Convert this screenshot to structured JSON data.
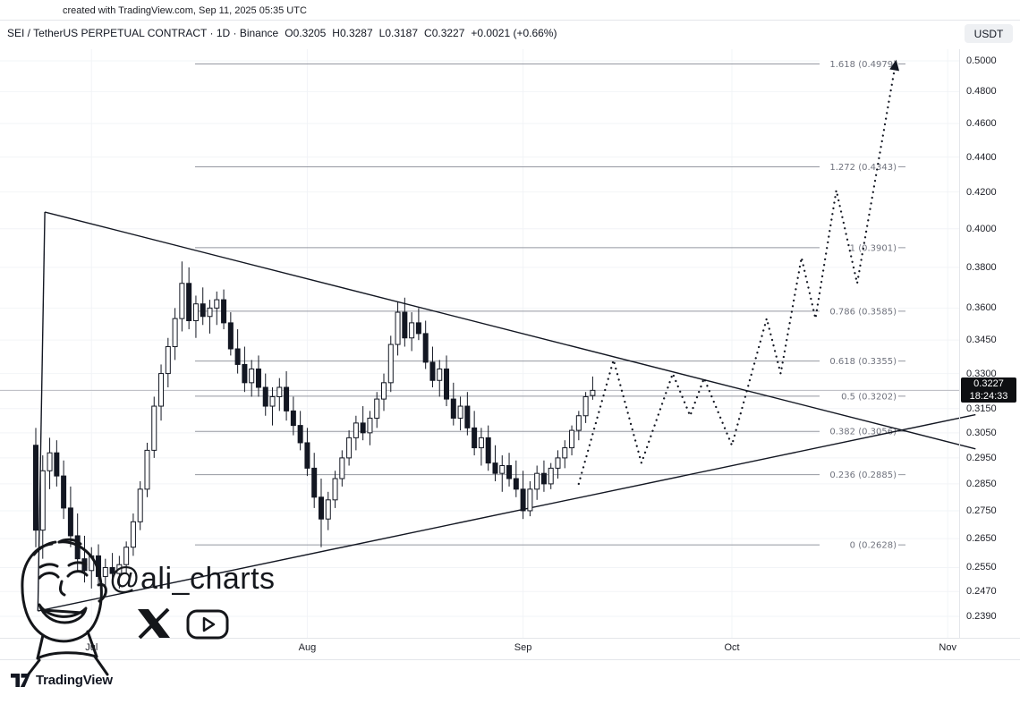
{
  "meta": {
    "created_note": "created with TradingView.com, Sep 11, 2025 05:35 UTC"
  },
  "header": {
    "symbol_line": "SEI / TetherUS PERPETUAL CONTRACT · 1D · Binance",
    "ohlc": {
      "open_label": "O",
      "open": "0.3205",
      "high_label": "H",
      "high": "0.3287",
      "low_label": "L",
      "low": "0.3187",
      "close_label": "C",
      "close": "0.3227",
      "change": "+0.0021 (+0.66%)"
    },
    "currency_button": "USDT"
  },
  "watermark": {
    "handle": "@ali_charts"
  },
  "footer": {
    "brand": "TradingView"
  },
  "price_scale": {
    "ticks": [
      "0.5000",
      "0.4800",
      "0.4600",
      "0.4400",
      "0.4200",
      "0.4000",
      "0.3800",
      "0.3600",
      "0.3450",
      "0.3300",
      "0.3150",
      "0.3050",
      "0.2950",
      "0.2850",
      "0.2750",
      "0.2650",
      "0.2550",
      "0.2470",
      "0.2390"
    ],
    "badge": {
      "price": "0.3227",
      "countdown": "18:24:33"
    }
  },
  "colors": {
    "background": "#ffffff",
    "candle_up": "#ffffff",
    "candle_down": "#131722",
    "outline": "#131722",
    "fib_line": "#9598a1",
    "grid": "#f2f4f7",
    "price_line": "#b8bac1",
    "badge_bg": "#0e0f12",
    "badge_text": "#ffffff",
    "muted_text": "#70737e"
  },
  "chart_data": {
    "type": "candlestick",
    "title": "SEI / TetherUS PERPETUAL CONTRACT · 1D · Binance",
    "symbol": "SEI / TetherUS PERPETUAL CONTRACT",
    "exchange": "Binance",
    "interval": "1D",
    "price_scale_type": "log",
    "visible_price_range": [
      0.235,
      0.508
    ],
    "x_axis_months": "Jul–Nov 2025",
    "last": {
      "open": 0.3205,
      "high": 0.3287,
      "low": 0.3187,
      "close": 0.3227,
      "change": "+0.0021",
      "change_pct": "+0.66%"
    },
    "fib_levels": [
      {
        "level": "1.618",
        "price": "0.4979"
      },
      {
        "level": "1.272",
        "price": "0.4343"
      },
      {
        "level": "1",
        "price": "0.3901"
      },
      {
        "level": "0.786",
        "price": "0.3585"
      },
      {
        "level": "0.618",
        "price": "0.3355"
      },
      {
        "level": "0.5",
        "price": "0.3202"
      },
      {
        "level": "0.382",
        "price": "0.3056"
      },
      {
        "level": "0.236",
        "price": "0.2885"
      },
      {
        "level": "0",
        "price": "0.2628"
      }
    ],
    "months": [
      {
        "label": "Jul",
        "day_index": 8
      },
      {
        "label": "Aug",
        "day_index": 39
      },
      {
        "label": "Sep",
        "day_index": 70
      },
      {
        "label": "Oct",
        "day_index": 100
      },
      {
        "label": "Nov",
        "day_index": 131
      }
    ],
    "trendline_triangle": {
      "pattern": "symmetrical-triangle",
      "vertices_day_price": [
        [
          1.3,
          0.409
        ],
        [
          0.3,
          0.2407
        ],
        [
          124.4,
          0.3061
        ]
      ],
      "extend_to_day": 135
    },
    "projection_path_day_price": [
      [
        78,
        0.285
      ],
      [
        83,
        0.336
      ],
      [
        87,
        0.293
      ],
      [
        91.5,
        0.33
      ],
      [
        94,
        0.312
      ],
      [
        96,
        0.328
      ],
      [
        100,
        0.3
      ],
      [
        105,
        0.355
      ],
      [
        107,
        0.33
      ],
      [
        110,
        0.385
      ],
      [
        112,
        0.355
      ],
      [
        115,
        0.421
      ],
      [
        118,
        0.372
      ],
      [
        123.5,
        0.4979
      ]
    ],
    "candles": [
      [
        "6/23",
        0.3,
        0.307,
        0.262,
        0.268
      ],
      [
        "6/24",
        0.268,
        0.296,
        0.258,
        0.29
      ],
      [
        "6/25",
        0.29,
        0.303,
        0.283,
        0.297
      ],
      [
        "6/26",
        0.297,
        0.302,
        0.284,
        0.288
      ],
      [
        "6/27",
        0.288,
        0.294,
        0.272,
        0.276
      ],
      [
        "6/28",
        0.276,
        0.284,
        0.262,
        0.266
      ],
      [
        "6/29",
        0.266,
        0.274,
        0.254,
        0.258
      ],
      [
        "6/30",
        0.258,
        0.266,
        0.25,
        0.254
      ],
      [
        "7/1",
        0.254,
        0.262,
        0.248,
        0.259
      ],
      [
        "7/2",
        0.259,
        0.263,
        0.249,
        0.252
      ],
      [
        "7/3",
        0.252,
        0.258,
        0.247,
        0.255
      ],
      [
        "7/4",
        0.255,
        0.26,
        0.25,
        0.253
      ],
      [
        "7/5",
        0.253,
        0.259,
        0.248,
        0.256
      ],
      [
        "7/6",
        0.256,
        0.264,
        0.253,
        0.262
      ],
      [
        "7/7",
        0.262,
        0.274,
        0.259,
        0.271
      ],
      [
        "7/8",
        0.271,
        0.286,
        0.268,
        0.283
      ],
      [
        "7/9",
        0.283,
        0.301,
        0.28,
        0.298
      ],
      [
        "7/10",
        0.298,
        0.32,
        0.295,
        0.316
      ],
      [
        "7/11",
        0.316,
        0.334,
        0.31,
        0.33
      ],
      [
        "7/12",
        0.33,
        0.346,
        0.324,
        0.342
      ],
      [
        "7/13",
        0.342,
        0.36,
        0.336,
        0.355
      ],
      [
        "7/14",
        0.355,
        0.383,
        0.349,
        0.372
      ],
      [
        "7/15",
        0.372,
        0.38,
        0.35,
        0.354
      ],
      [
        "7/16",
        0.354,
        0.366,
        0.346,
        0.362
      ],
      [
        "7/17",
        0.362,
        0.37,
        0.352,
        0.356
      ],
      [
        "7/18",
        0.356,
        0.364,
        0.348,
        0.36
      ],
      [
        "7/19",
        0.36,
        0.368,
        0.352,
        0.364
      ],
      [
        "7/20",
        0.364,
        0.369,
        0.35,
        0.353
      ],
      [
        "7/21",
        0.353,
        0.358,
        0.338,
        0.341
      ],
      [
        "7/22",
        0.341,
        0.35,
        0.33,
        0.334
      ],
      [
        "7/23",
        0.334,
        0.342,
        0.322,
        0.326
      ],
      [
        "7/24",
        0.326,
        0.336,
        0.32,
        0.332
      ],
      [
        "7/25",
        0.332,
        0.338,
        0.32,
        0.324
      ],
      [
        "7/26",
        0.324,
        0.33,
        0.312,
        0.316
      ],
      [
        "7/27",
        0.316,
        0.324,
        0.308,
        0.32
      ],
      [
        "7/28",
        0.32,
        0.328,
        0.314,
        0.324
      ],
      [
        "7/29",
        0.324,
        0.331,
        0.31,
        0.314
      ],
      [
        "7/30",
        0.314,
        0.32,
        0.304,
        0.308
      ],
      [
        "7/31",
        0.308,
        0.314,
        0.298,
        0.301
      ],
      [
        "8/1",
        0.301,
        0.307,
        0.288,
        0.291
      ],
      [
        "8/2",
        0.291,
        0.297,
        0.276,
        0.28
      ],
      [
        "8/3",
        0.28,
        0.287,
        0.262,
        0.272
      ],
      [
        "8/4",
        0.272,
        0.282,
        0.268,
        0.279
      ],
      [
        "8/5",
        0.279,
        0.29,
        0.276,
        0.287
      ],
      [
        "8/6",
        0.287,
        0.298,
        0.284,
        0.295
      ],
      [
        "8/7",
        0.295,
        0.306,
        0.292,
        0.303
      ],
      [
        "8/8",
        0.303,
        0.312,
        0.298,
        0.309
      ],
      [
        "8/9",
        0.309,
        0.316,
        0.302,
        0.305
      ],
      [
        "8/10",
        0.305,
        0.314,
        0.3,
        0.311
      ],
      [
        "8/11",
        0.311,
        0.322,
        0.307,
        0.319
      ],
      [
        "8/12",
        0.319,
        0.33,
        0.314,
        0.326
      ],
      [
        "8/13",
        0.326,
        0.347,
        0.322,
        0.343
      ],
      [
        "8/14",
        0.343,
        0.363,
        0.338,
        0.358
      ],
      [
        "8/15",
        0.358,
        0.365,
        0.342,
        0.346
      ],
      [
        "8/16",
        0.346,
        0.358,
        0.34,
        0.353
      ],
      [
        "8/17",
        0.353,
        0.36,
        0.345,
        0.348
      ],
      [
        "8/18",
        0.348,
        0.354,
        0.332,
        0.335
      ],
      [
        "8/19",
        0.335,
        0.342,
        0.324,
        0.327
      ],
      [
        "8/20",
        0.327,
        0.336,
        0.32,
        0.332
      ],
      [
        "8/21",
        0.332,
        0.338,
        0.316,
        0.319
      ],
      [
        "8/22",
        0.319,
        0.326,
        0.308,
        0.311
      ],
      [
        "8/23",
        0.311,
        0.32,
        0.306,
        0.316
      ],
      [
        "8/24",
        0.316,
        0.322,
        0.304,
        0.307
      ],
      [
        "8/25",
        0.307,
        0.314,
        0.296,
        0.299
      ],
      [
        "8/26",
        0.299,
        0.307,
        0.292,
        0.303
      ],
      [
        "8/27",
        0.303,
        0.308,
        0.29,
        0.293
      ],
      [
        "8/28",
        0.293,
        0.3,
        0.286,
        0.289
      ],
      [
        "8/29",
        0.289,
        0.296,
        0.282,
        0.292
      ],
      [
        "8/30",
        0.292,
        0.297,
        0.284,
        0.287
      ],
      [
        "8/31",
        0.287,
        0.294,
        0.28,
        0.283
      ],
      [
        "9/1",
        0.283,
        0.29,
        0.272,
        0.275
      ],
      [
        "9/2",
        0.275,
        0.286,
        0.273,
        0.283
      ],
      [
        "9/3",
        0.283,
        0.292,
        0.279,
        0.289
      ],
      [
        "9/4",
        0.289,
        0.294,
        0.282,
        0.285
      ],
      [
        "9/5",
        0.285,
        0.293,
        0.283,
        0.291
      ],
      [
        "9/6",
        0.291,
        0.298,
        0.287,
        0.295
      ],
      [
        "9/7",
        0.295,
        0.302,
        0.291,
        0.299
      ],
      [
        "9/8",
        0.299,
        0.308,
        0.296,
        0.306
      ],
      [
        "9/9",
        0.306,
        0.314,
        0.302,
        0.312
      ],
      [
        "9/10",
        0.312,
        0.322,
        0.309,
        0.32
      ],
      [
        "9/11",
        0.3205,
        0.3287,
        0.3187,
        0.3227
      ]
    ]
  }
}
